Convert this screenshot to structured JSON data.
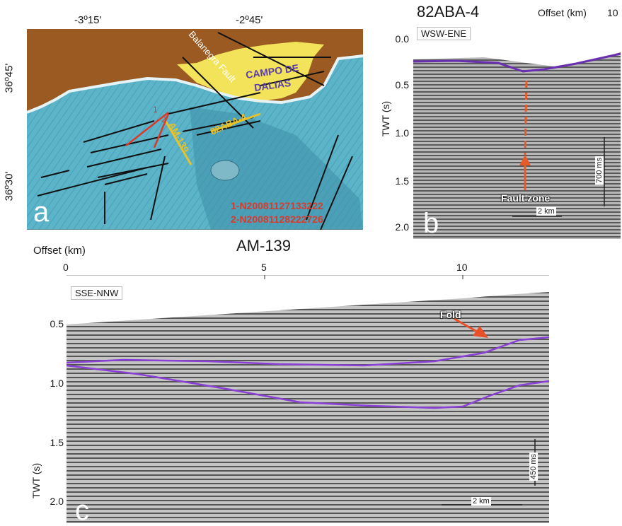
{
  "panel_a": {
    "letter": "a",
    "lon_ticks": [
      "-3º15'",
      "-2º45'"
    ],
    "lat_ticks": [
      "36º45'",
      "36º30'"
    ],
    "labels": {
      "fault": "Balanegra Fault",
      "campo_line1": "CAMPO DE",
      "campo_line2": "DALIAS",
      "line_82": "82ABA-4",
      "line_am": "AM-139",
      "eq1_num": "1",
      "eq2_num": "2",
      "eq1": "1-N20081127133222",
      "eq2": "2-N20081128222726"
    },
    "colors": {
      "land": "#9a5a22",
      "campo": "#f3e35a",
      "sea": "#59b3c9",
      "deep": "#3f95ad",
      "fault": "#111111",
      "line": "#e7c22a",
      "eq": "#d93a2b",
      "campo_text": "#5a3ea8"
    }
  },
  "panel_b": {
    "title": "82ABA-4",
    "letter": "b",
    "offset_label": "Offset (km)",
    "offset_max": "10",
    "direction": "WSW-ENE",
    "y_axis_label": "TWT (s)",
    "y_ticks": [
      "0.0",
      "0.5",
      "1.0",
      "1.5",
      "2.0"
    ],
    "annotation": "Fault zone",
    "vscale": "700 ms",
    "hscale": "2 km",
    "colors": {
      "horizon": "#6a2fb0",
      "fault": "#e85a2a"
    }
  },
  "panel_c": {
    "title": "AM-139",
    "letter": "c",
    "offset_label": "Offset (km)",
    "x_ticks": [
      "0",
      "5",
      "10"
    ],
    "direction": "SSE-NNW",
    "y_axis_label": "TWT (s)",
    "y_ticks": [
      "0.5",
      "1.0",
      "1.5",
      "2.0"
    ],
    "annotation": "Fold",
    "vscale": "450 ms",
    "hscale": "2 km",
    "colors": {
      "horizon": "#8a3fd6",
      "arrow": "#e8502a"
    }
  }
}
